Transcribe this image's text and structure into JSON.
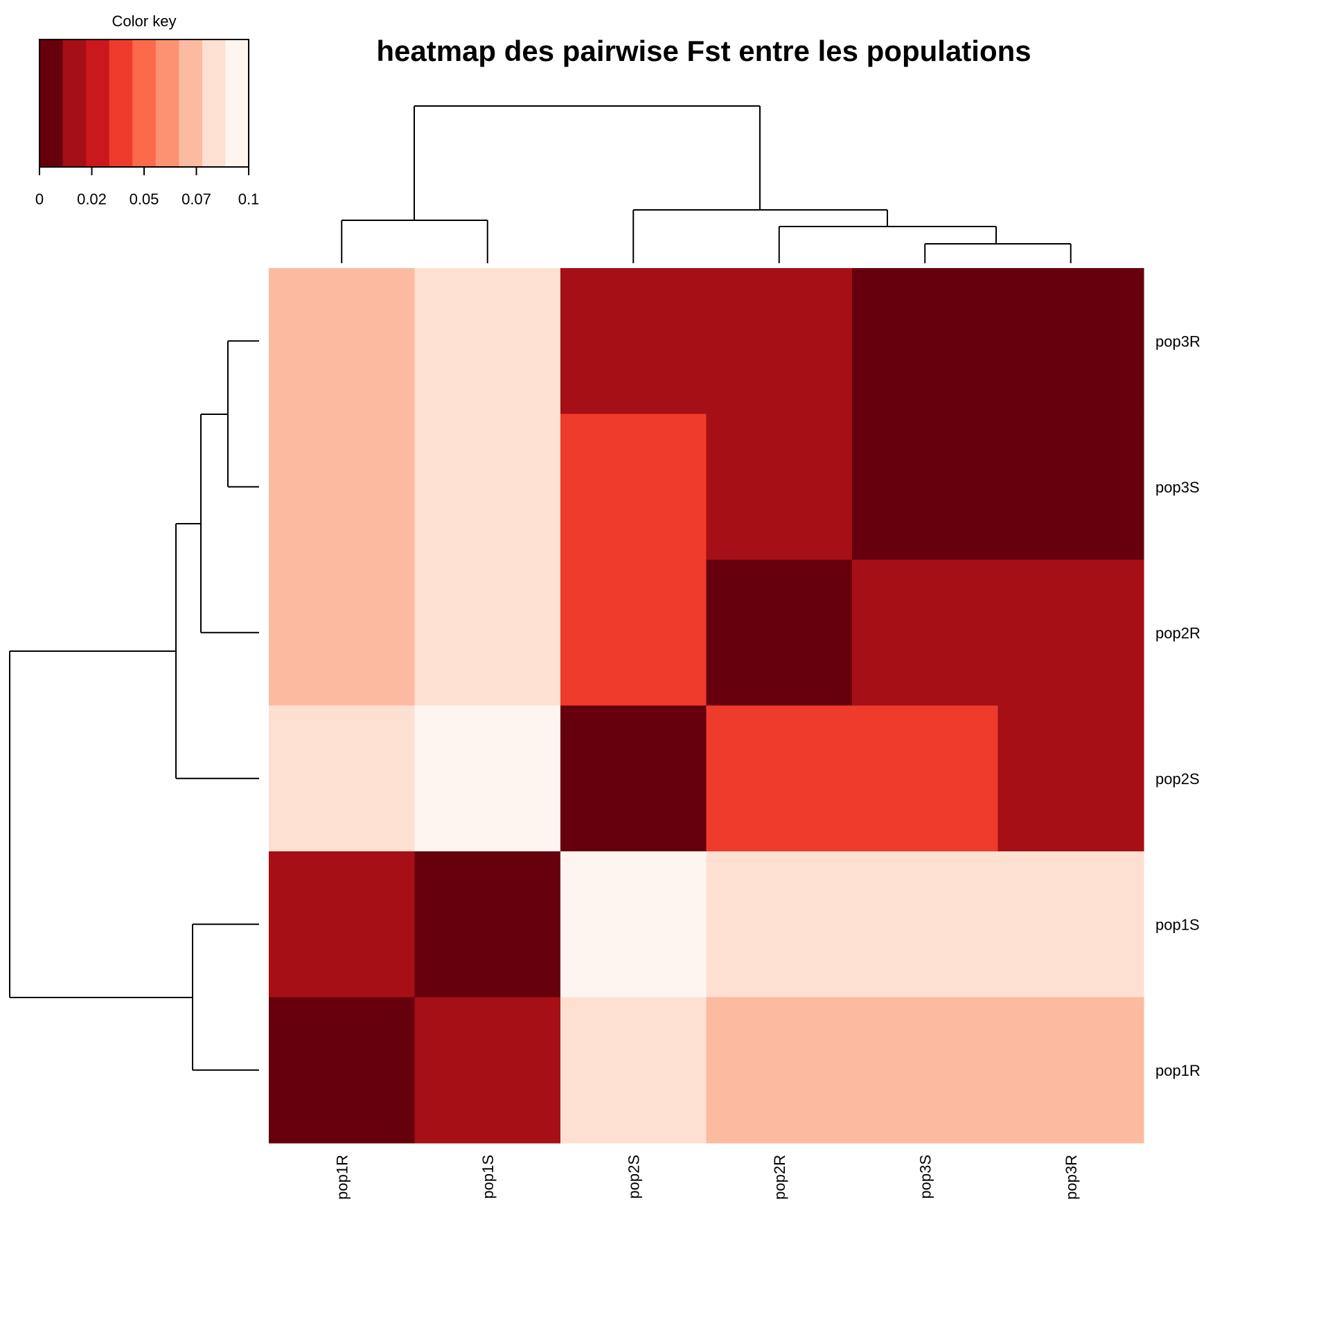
{
  "chart_data": {
    "type": "heatmap",
    "title": "heatmap des pairwise Fst entre les populations",
    "columns": [
      "pop1R",
      "pop1S",
      "pop2S",
      "pop2R",
      "pop3S",
      "pop3R"
    ],
    "rows": [
      "pop3R",
      "pop3S",
      "pop2R",
      "pop2S",
      "pop1S",
      "pop1R"
    ],
    "values": [
      [
        0.07,
        0.08,
        0.02,
        0.02,
        0.01,
        0.0
      ],
      [
        0.07,
        0.08,
        0.04,
        0.02,
        0.0,
        0.01
      ],
      [
        0.07,
        0.08,
        0.04,
        0.0,
        0.02,
        0.02
      ],
      [
        0.08,
        0.1,
        0.0,
        0.04,
        0.04,
        0.02
      ],
      [
        0.02,
        0.0,
        0.1,
        0.08,
        0.08,
        0.08
      ],
      [
        0.0,
        0.02,
        0.08,
        0.07,
        0.07,
        0.07
      ]
    ],
    "color_key": {
      "label": "Color key",
      "range": [
        0,
        0.1
      ],
      "tick_labels": [
        "0",
        "0.02",
        "0.05",
        "0.07",
        "0.1"
      ],
      "colors": [
        "#67000d",
        "#a50f15",
        "#cb181d",
        "#ef3b2c",
        "#fb6a4a",
        "#fc9272",
        "#fcbba1",
        "#fee0d2",
        "#fff5f0"
      ]
    },
    "legend_position": "top-left",
    "column_dendrogram": true,
    "row_dendrogram": true
  }
}
